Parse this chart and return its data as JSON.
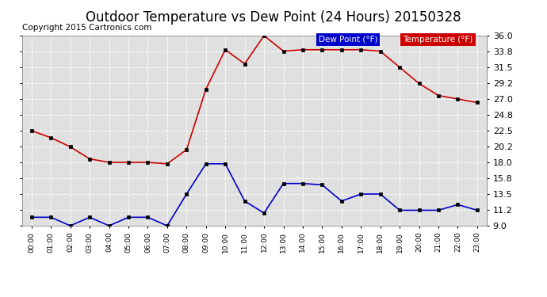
{
  "title": "Outdoor Temperature vs Dew Point (24 Hours) 20150328",
  "copyright": "Copyright 2015 Cartronics.com",
  "legend_dew": "Dew Point (°F)",
  "legend_temp": "Temperature (°F)",
  "hours": [
    "00:00",
    "01:00",
    "02:00",
    "03:00",
    "04:00",
    "05:00",
    "06:00",
    "07:00",
    "08:00",
    "09:00",
    "10:00",
    "11:00",
    "12:00",
    "13:00",
    "14:00",
    "15:00",
    "16:00",
    "17:00",
    "18:00",
    "19:00",
    "20:00",
    "21:00",
    "22:00",
    "23:00"
  ],
  "temperature": [
    22.5,
    21.5,
    20.2,
    18.5,
    18.0,
    18.0,
    18.0,
    17.8,
    19.8,
    28.4,
    34.0,
    32.0,
    36.0,
    33.8,
    34.0,
    34.0,
    34.0,
    34.0,
    33.8,
    31.5,
    29.2,
    27.5,
    27.0,
    26.5
  ],
  "dew_point": [
    10.2,
    10.2,
    9.0,
    10.2,
    9.0,
    10.2,
    10.2,
    9.0,
    13.5,
    17.8,
    17.8,
    12.5,
    10.8,
    15.0,
    15.0,
    14.8,
    12.5,
    13.5,
    13.5,
    11.2,
    11.2,
    11.2,
    12.0,
    11.2
  ],
  "temp_color": "#cc0000",
  "dew_color": "#0000cc",
  "ylim_min": 9.0,
  "ylim_max": 36.0,
  "yticks": [
    9.0,
    11.2,
    13.5,
    15.8,
    18.0,
    20.2,
    22.5,
    24.8,
    27.0,
    29.2,
    31.5,
    33.8,
    36.0
  ],
  "background_color": "#ffffff",
  "plot_bg_color": "#e0e0e0",
  "grid_color": "#ffffff",
  "title_fontsize": 12,
  "copyright_fontsize": 7.5,
  "legend_bg_dew": "#0000cc",
  "legend_bg_temp": "#cc0000",
  "legend_text_color": "#ffffff",
  "marker_color": "#000000",
  "marker_size": 3,
  "line_width": 1.2
}
